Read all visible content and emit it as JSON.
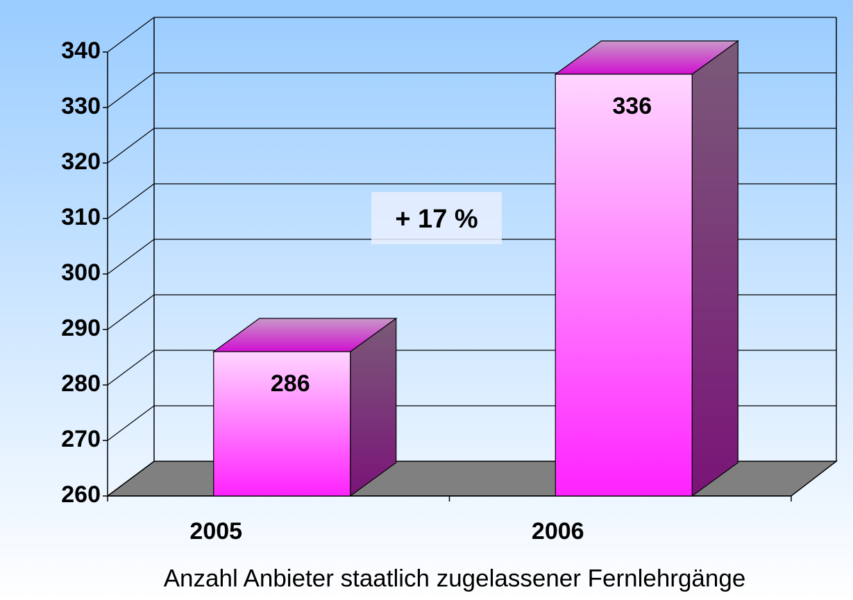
{
  "chart_data": {
    "type": "bar",
    "categories": [
      "2005",
      "2006"
    ],
    "values": [
      286,
      336
    ],
    "color": "#ff22ff",
    "ylim": [
      260,
      340
    ],
    "yticks": [
      260,
      270,
      280,
      290,
      300,
      310,
      320,
      330,
      340
    ],
    "grid": true,
    "annotation": "+ 17 %",
    "x_label": "Anzahl Anbieter staatlich zugelassener Fernlehrgänge"
  }
}
